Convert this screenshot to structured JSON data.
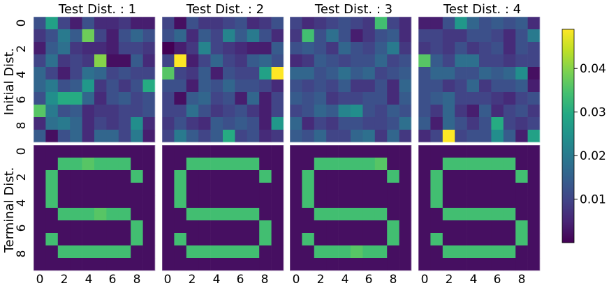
{
  "chart_data": {
    "type": "heatmap",
    "rows": [
      "Initial Dist.",
      "Terminal Dist."
    ],
    "column_titles": [
      "Test Dist. : 1",
      "Test Dist. : 2",
      "Test Dist. : 3",
      "Test Dist. : 4"
    ],
    "grid_size": 10,
    "x_ticks": [
      0,
      2,
      4,
      6,
      8
    ],
    "y_ticks": [
      0,
      2,
      4,
      6,
      8
    ],
    "colormap": "viridis",
    "vmin": 0.0,
    "vmax": 0.049,
    "colorbar_ticks": [
      0.01,
      0.02,
      0.03,
      0.04
    ],
    "colorbar_tick_labels": [
      "0.01",
      "0.02",
      "0.03",
      "0.04"
    ],
    "initial": [
      [
        [
          0.012,
          0.028,
          0.01,
          0.004,
          0.012,
          0.006,
          0.006,
          0.008,
          0.004,
          0.004
        ],
        [
          0.008,
          0.012,
          0.02,
          0.014,
          0.038,
          0.01,
          0.004,
          0.012,
          0.016,
          0.012
        ],
        [
          0.004,
          0.014,
          0.018,
          0.008,
          0.006,
          0.006,
          0.004,
          0.01,
          0.01,
          0.008
        ],
        [
          0.01,
          0.018,
          0.008,
          0.01,
          0.008,
          0.04,
          0.002,
          0.002,
          0.014,
          0.006
        ],
        [
          0.016,
          0.01,
          0.004,
          0.01,
          0.018,
          0.016,
          0.01,
          0.012,
          0.01,
          0.01
        ],
        [
          0.016,
          0.02,
          0.012,
          0.014,
          0.026,
          0.008,
          0.012,
          0.008,
          0.012,
          0.03
        ],
        [
          0.012,
          0.024,
          0.03,
          0.03,
          0.016,
          0.006,
          0.012,
          0.014,
          0.01,
          0.012
        ],
        [
          0.036,
          0.02,
          0.012,
          0.014,
          0.006,
          0.008,
          0.008,
          0.01,
          0.01,
          0.012
        ],
        [
          0.006,
          0.018,
          0.02,
          0.016,
          0.006,
          0.01,
          0.008,
          0.01,
          0.024,
          0.006
        ],
        [
          0.014,
          0.002,
          0.012,
          0.016,
          0.006,
          0.016,
          0.016,
          0.01,
          0.02,
          0.004
        ]
      ],
      [
        [
          0.01,
          0.002,
          0.012,
          0.008,
          0.008,
          0.01,
          0.012,
          0.006,
          0.008,
          0.012
        ],
        [
          0.012,
          0.016,
          0.006,
          0.014,
          0.01,
          0.022,
          0.014,
          0.02,
          0.012,
          0.006
        ],
        [
          0.0,
          0.004,
          0.008,
          0.022,
          0.01,
          0.008,
          0.006,
          0.004,
          0.004,
          0.014
        ],
        [
          0.01,
          0.049,
          0.004,
          0.01,
          0.016,
          0.01,
          0.008,
          0.014,
          0.016,
          0.012
        ],
        [
          0.036,
          0.01,
          0.008,
          0.014,
          0.004,
          0.012,
          0.01,
          0.01,
          0.028,
          0.049
        ],
        [
          0.012,
          0.012,
          0.004,
          0.014,
          0.012,
          0.016,
          0.012,
          0.012,
          0.01,
          0.006
        ],
        [
          0.01,
          0.002,
          0.014,
          0.016,
          0.01,
          0.012,
          0.004,
          0.016,
          0.004,
          0.01
        ],
        [
          0.01,
          0.01,
          0.018,
          0.012,
          0.008,
          0.01,
          0.012,
          0.008,
          0.004,
          0.01
        ],
        [
          0.008,
          0.012,
          0.008,
          0.006,
          0.014,
          0.012,
          0.014,
          0.012,
          0.004,
          0.026
        ],
        [
          0.01,
          0.02,
          0.014,
          0.01,
          0.014,
          0.03,
          0.01,
          0.012,
          0.006,
          0.008
        ]
      ],
      [
        [
          0.01,
          0.006,
          0.008,
          0.01,
          0.012,
          0.01,
          0.008,
          0.034,
          0.01,
          0.006
        ],
        [
          0.008,
          0.034,
          0.012,
          0.018,
          0.012,
          0.004,
          0.008,
          0.012,
          0.014,
          0.006
        ],
        [
          0.012,
          0.014,
          0.012,
          0.008,
          0.016,
          0.012,
          0.01,
          0.014,
          0.02,
          0.008
        ],
        [
          0.006,
          0.008,
          0.014,
          0.012,
          0.01,
          0.012,
          0.012,
          0.016,
          0.01,
          0.012
        ],
        [
          0.016,
          0.016,
          0.012,
          0.014,
          0.018,
          0.014,
          0.016,
          0.01,
          0.012,
          0.014
        ],
        [
          0.012,
          0.01,
          0.012,
          0.01,
          0.014,
          0.008,
          0.008,
          0.012,
          0.006,
          0.016
        ],
        [
          0.014,
          0.012,
          0.014,
          0.008,
          0.01,
          0.01,
          0.012,
          0.012,
          0.006,
          0.014
        ],
        [
          0.01,
          0.012,
          0.016,
          0.014,
          0.022,
          0.024,
          0.012,
          0.01,
          0.014,
          0.012
        ],
        [
          0.016,
          0.006,
          0.01,
          0.008,
          0.012,
          0.012,
          0.01,
          0.01,
          0.012,
          0.018
        ],
        [
          0.014,
          0.012,
          0.016,
          0.01,
          0.01,
          0.016,
          0.018,
          0.008,
          0.016,
          0.008
        ]
      ],
      [
        [
          0.004,
          0.004,
          0.012,
          0.026,
          0.016,
          0.012,
          0.014,
          0.012,
          0.014,
          0.006
        ],
        [
          0.01,
          0.01,
          0.008,
          0.008,
          0.012,
          0.012,
          0.01,
          0.006,
          0.012,
          0.02
        ],
        [
          0.008,
          0.01,
          0.008,
          0.012,
          0.008,
          0.01,
          0.012,
          0.006,
          0.012,
          0.01
        ],
        [
          0.036,
          0.014,
          0.01,
          0.018,
          0.018,
          0.01,
          0.01,
          0.008,
          0.01,
          0.01
        ],
        [
          0.012,
          0.016,
          0.016,
          0.012,
          0.012,
          0.016,
          0.014,
          0.016,
          0.024,
          0.002
        ],
        [
          0.012,
          0.012,
          0.008,
          0.01,
          0.016,
          0.008,
          0.012,
          0.012,
          0.014,
          0.004
        ],
        [
          0.012,
          0.014,
          0.016,
          0.01,
          0.01,
          0.01,
          0.008,
          0.006,
          0.01,
          0.012
        ],
        [
          0.012,
          0.008,
          0.016,
          0.008,
          0.004,
          0.014,
          0.006,
          0.01,
          0.012,
          0.008
        ],
        [
          0.014,
          0.004,
          0.016,
          0.012,
          0.008,
          0.012,
          0.03,
          0.01,
          0.008,
          0.01
        ],
        [
          0.006,
          0.01,
          0.049,
          0.01,
          0.012,
          0.012,
          0.024,
          0.014,
          0.004,
          0.028
        ]
      ]
    ],
    "terminal": [
      [
        [
          0.002,
          0.002,
          0.002,
          0.002,
          0.002,
          0.002,
          0.002,
          0.002,
          0.002,
          0.002
        ],
        [
          0.002,
          0.002,
          0.034,
          0.034,
          0.036,
          0.034,
          0.034,
          0.034,
          0.002,
          0.002
        ],
        [
          0.002,
          0.034,
          0.002,
          0.002,
          0.002,
          0.002,
          0.002,
          0.002,
          0.034,
          0.002
        ],
        [
          0.002,
          0.034,
          0.002,
          0.002,
          0.002,
          0.002,
          0.002,
          0.002,
          0.002,
          0.002
        ],
        [
          0.002,
          0.034,
          0.002,
          0.002,
          0.002,
          0.002,
          0.002,
          0.002,
          0.002,
          0.002
        ],
        [
          0.002,
          0.002,
          0.034,
          0.034,
          0.034,
          0.036,
          0.034,
          0.034,
          0.002,
          0.002
        ],
        [
          0.002,
          0.002,
          0.002,
          0.002,
          0.002,
          0.002,
          0.002,
          0.002,
          0.034,
          0.002
        ],
        [
          0.002,
          0.034,
          0.002,
          0.002,
          0.002,
          0.002,
          0.002,
          0.002,
          0.034,
          0.002
        ],
        [
          0.002,
          0.002,
          0.034,
          0.034,
          0.034,
          0.034,
          0.034,
          0.034,
          0.002,
          0.002
        ],
        [
          0.002,
          0.002,
          0.002,
          0.002,
          0.002,
          0.002,
          0.002,
          0.002,
          0.002,
          0.002
        ]
      ],
      [
        [
          0.002,
          0.002,
          0.002,
          0.002,
          0.002,
          0.002,
          0.002,
          0.002,
          0.002,
          0.002
        ],
        [
          0.002,
          0.002,
          0.034,
          0.034,
          0.034,
          0.034,
          0.034,
          0.034,
          0.002,
          0.002
        ],
        [
          0.002,
          0.034,
          0.002,
          0.002,
          0.002,
          0.002,
          0.002,
          0.002,
          0.034,
          0.002
        ],
        [
          0.002,
          0.034,
          0.002,
          0.002,
          0.002,
          0.002,
          0.002,
          0.002,
          0.002,
          0.002
        ],
        [
          0.002,
          0.034,
          0.002,
          0.002,
          0.002,
          0.002,
          0.002,
          0.002,
          0.002,
          0.002
        ],
        [
          0.002,
          0.002,
          0.034,
          0.034,
          0.034,
          0.034,
          0.034,
          0.034,
          0.002,
          0.002
        ],
        [
          0.002,
          0.002,
          0.002,
          0.002,
          0.002,
          0.002,
          0.002,
          0.002,
          0.034,
          0.002
        ],
        [
          0.002,
          0.034,
          0.002,
          0.002,
          0.002,
          0.002,
          0.002,
          0.002,
          0.034,
          0.002
        ],
        [
          0.002,
          0.002,
          0.034,
          0.034,
          0.034,
          0.034,
          0.034,
          0.034,
          0.002,
          0.002
        ],
        [
          0.002,
          0.002,
          0.002,
          0.002,
          0.002,
          0.002,
          0.002,
          0.002,
          0.002,
          0.002
        ]
      ],
      [
        [
          0.002,
          0.002,
          0.002,
          0.002,
          0.002,
          0.002,
          0.002,
          0.002,
          0.002,
          0.002
        ],
        [
          0.002,
          0.002,
          0.034,
          0.034,
          0.034,
          0.034,
          0.034,
          0.036,
          0.002,
          0.002
        ],
        [
          0.002,
          0.034,
          0.002,
          0.002,
          0.002,
          0.002,
          0.002,
          0.002,
          0.034,
          0.002
        ],
        [
          0.002,
          0.034,
          0.002,
          0.002,
          0.002,
          0.002,
          0.002,
          0.002,
          0.002,
          0.002
        ],
        [
          0.002,
          0.034,
          0.002,
          0.002,
          0.002,
          0.002,
          0.002,
          0.002,
          0.002,
          0.002
        ],
        [
          0.002,
          0.002,
          0.034,
          0.034,
          0.034,
          0.034,
          0.034,
          0.034,
          0.002,
          0.002
        ],
        [
          0.002,
          0.002,
          0.002,
          0.002,
          0.002,
          0.002,
          0.002,
          0.002,
          0.034,
          0.002
        ],
        [
          0.002,
          0.034,
          0.002,
          0.002,
          0.002,
          0.002,
          0.002,
          0.002,
          0.034,
          0.002
        ],
        [
          0.002,
          0.002,
          0.034,
          0.034,
          0.034,
          0.036,
          0.034,
          0.034,
          0.002,
          0.002
        ],
        [
          0.002,
          0.002,
          0.002,
          0.002,
          0.002,
          0.002,
          0.002,
          0.002,
          0.002,
          0.002
        ]
      ],
      [
        [
          0.002,
          0.002,
          0.002,
          0.002,
          0.002,
          0.002,
          0.002,
          0.002,
          0.002,
          0.002
        ],
        [
          0.002,
          0.002,
          0.034,
          0.034,
          0.034,
          0.034,
          0.034,
          0.034,
          0.002,
          0.002
        ],
        [
          0.002,
          0.034,
          0.002,
          0.002,
          0.002,
          0.002,
          0.002,
          0.002,
          0.034,
          0.002
        ],
        [
          0.002,
          0.034,
          0.002,
          0.002,
          0.002,
          0.002,
          0.002,
          0.002,
          0.002,
          0.002
        ],
        [
          0.002,
          0.034,
          0.002,
          0.002,
          0.002,
          0.002,
          0.002,
          0.002,
          0.002,
          0.002
        ],
        [
          0.002,
          0.002,
          0.034,
          0.034,
          0.034,
          0.034,
          0.034,
          0.034,
          0.002,
          0.002
        ],
        [
          0.002,
          0.002,
          0.002,
          0.002,
          0.002,
          0.002,
          0.002,
          0.002,
          0.034,
          0.002
        ],
        [
          0.002,
          0.034,
          0.002,
          0.002,
          0.002,
          0.002,
          0.002,
          0.002,
          0.034,
          0.002
        ],
        [
          0.002,
          0.002,
          0.034,
          0.034,
          0.034,
          0.034,
          0.034,
          0.034,
          0.002,
          0.002
        ],
        [
          0.002,
          0.002,
          0.002,
          0.002,
          0.002,
          0.002,
          0.002,
          0.002,
          0.002,
          0.002
        ]
      ]
    ]
  }
}
